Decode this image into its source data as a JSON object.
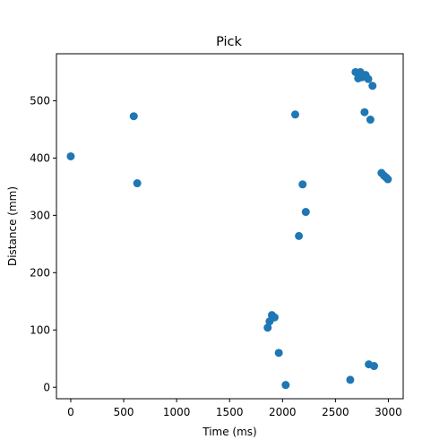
{
  "chart_data": {
    "type": "scatter",
    "title": "Pick",
    "xlabel": "Time (ms)",
    "ylabel": "Distance (mm)",
    "xlim": [
      -135,
      3140
    ],
    "ylim": [
      -20,
      582
    ],
    "xticks": [
      0,
      500,
      1000,
      1500,
      2000,
      2500,
      3000
    ],
    "yticks": [
      0,
      100,
      200,
      300,
      400,
      500
    ],
    "grid": false,
    "legend": "none",
    "marker_color": "#1f77b4",
    "series": [
      {
        "points": [
          [
            0,
            403
          ],
          [
            595,
            473
          ],
          [
            628,
            356
          ],
          [
            1860,
            104
          ],
          [
            1878,
            115
          ],
          [
            1900,
            126
          ],
          [
            1925,
            122
          ],
          [
            1965,
            60
          ],
          [
            2030,
            4
          ],
          [
            2120,
            476
          ],
          [
            2155,
            264
          ],
          [
            2190,
            354
          ],
          [
            2220,
            306
          ],
          [
            2640,
            13
          ],
          [
            2690,
            550
          ],
          [
            2715,
            539
          ],
          [
            2735,
            550
          ],
          [
            2750,
            541
          ],
          [
            2775,
            480
          ],
          [
            2785,
            545
          ],
          [
            2810,
            538
          ],
          [
            2815,
            40
          ],
          [
            2830,
            467
          ],
          [
            2850,
            526
          ],
          [
            2865,
            37
          ],
          [
            2935,
            374
          ],
          [
            2960,
            369
          ],
          [
            2980,
            366
          ],
          [
            2995,
            363
          ]
        ]
      }
    ]
  }
}
